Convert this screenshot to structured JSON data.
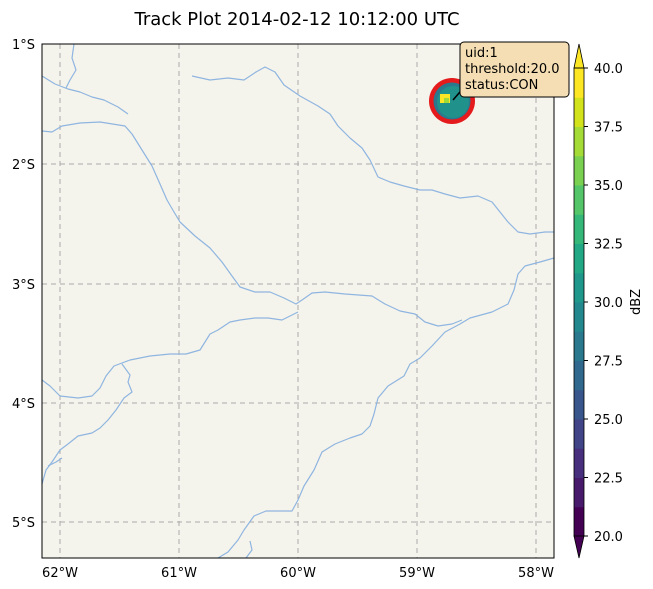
{
  "title": "Track Plot 2014-02-12 10:12:00 UTC",
  "map": {
    "x_ticks": [
      "62°W",
      "61°W",
      "60°W",
      "59°W",
      "58°W"
    ],
    "y_ticks": [
      "1°S",
      "2°S",
      "3°S",
      "4°S",
      "5°S"
    ],
    "lon_range": [
      -62.15,
      -57.85
    ],
    "lat_range": [
      -5.3,
      -1.0
    ],
    "grid": true,
    "background_color": "#f5f4ec",
    "river_color": "#8fb5e0",
    "storm": {
      "center_lon": -58.68,
      "center_lat": -1.5,
      "outline_color": "#e41a1c",
      "fill_color": "#21918c",
      "core_color": "#fde725",
      "annotation": {
        "uid": "uid:1",
        "threshold": "threshold:20.0",
        "status": "status:CON",
        "box_color": "#f5deb3"
      }
    }
  },
  "colorbar": {
    "label": "dBZ",
    "ticks": [
      "20.0",
      "22.5",
      "25.0",
      "27.5",
      "30.0",
      "32.5",
      "35.0",
      "37.5",
      "40.0"
    ],
    "vmin": 20.0,
    "vmax": 40.0,
    "colormap": "viridis"
  }
}
